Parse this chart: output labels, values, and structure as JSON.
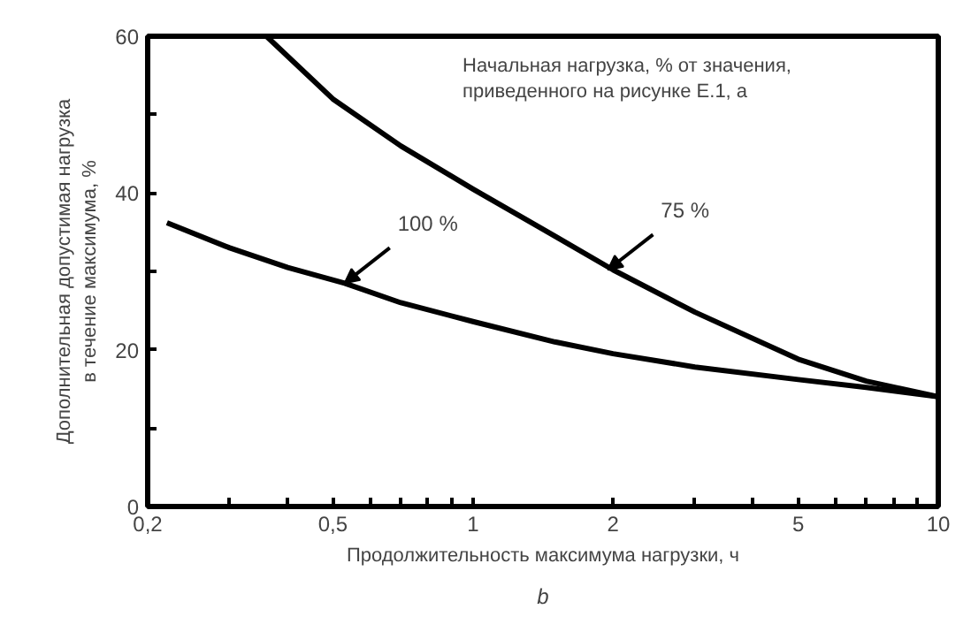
{
  "chart_data": {
    "type": "line",
    "xlabel": "Продолжительность максимума нагрузки, ч",
    "ylabel": "Дополнительная допустимая нагрузка\nв течение максимума, %",
    "log": "x",
    "xlim": [
      0.2,
      10
    ],
    "ylim": [
      0,
      60
    ],
    "xticks": [
      {
        "value": 0.2,
        "label": "0,2"
      },
      {
        "value": 0.3,
        "label": null
      },
      {
        "value": 0.4,
        "label": null
      },
      {
        "value": 0.5,
        "label": "0,5"
      },
      {
        "value": 0.6,
        "label": null
      },
      {
        "value": 0.7,
        "label": null
      },
      {
        "value": 0.8,
        "label": null
      },
      {
        "value": 0.9,
        "label": null
      },
      1,
      2,
      {
        "value": 3,
        "label": null
      },
      {
        "value": 4,
        "label": null
      },
      5,
      {
        "value": 6,
        "label": null
      },
      {
        "value": 7,
        "label": null
      },
      {
        "value": 8,
        "label": null
      },
      {
        "value": 9,
        "label": null
      },
      10
    ],
    "yticks": [
      0,
      {
        "value": 10,
        "label": null
      },
      20,
      {
        "value": 30,
        "label": null
      },
      40,
      {
        "value": 50,
        "label": null
      },
      60
    ],
    "grid": false,
    "marker": "none",
    "line_style": "solid",
    "series": [
      {
        "color": "#000000",
        "x": [
          0.22,
          0.3,
          0.4,
          0.53,
          0.7,
          1,
          1.5,
          2,
          3,
          5,
          7,
          10
        ],
        "values": [
          36.2,
          33,
          30.5,
          28.5,
          26,
          23.6,
          21,
          19.5,
          17.8,
          16.2,
          15.2,
          14
        ]
      },
      {
        "color": "#000000",
        "x": [
          0.36,
          0.5,
          0.7,
          1,
          1.5,
          2,
          3,
          5,
          7,
          10
        ],
        "values": [
          60,
          52,
          46,
          40.5,
          34.5,
          30.2,
          24.8,
          18.8,
          16,
          14
        ]
      }
    ],
    "annotations": [
      {
        "text": "100 %",
        "x": 0.53,
        "y": 28.5
      },
      {
        "text": "75 %",
        "x": 1.95,
        "y": 30.2
      },
      "Начальная нагрузка, % от значения,\nприведенного на рисунке Е.1, a",
      "b"
    ]
  }
}
